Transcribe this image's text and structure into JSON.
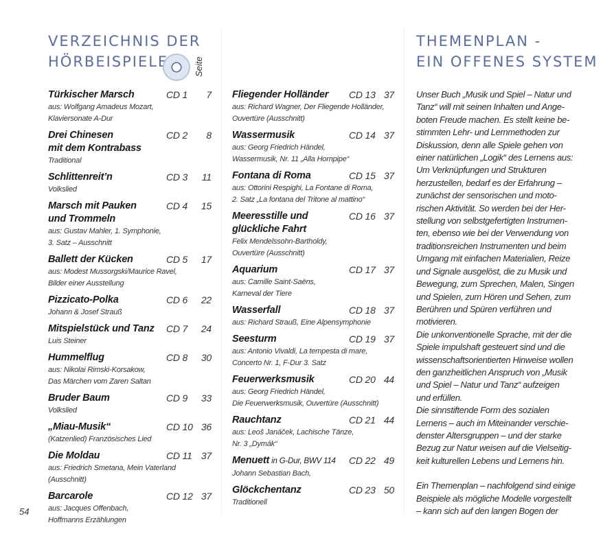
{
  "left_heading": [
    "VERZEICHNIS DER",
    "HÖRBEISPIELE"
  ],
  "seite_label": "Seite",
  "right_heading": [
    "THEMENPLAN -",
    "EIN OFFENES SYSTEM"
  ],
  "accent_color": "#5b6d9c",
  "icons": {
    "cd": "cd-disc-icon"
  },
  "left_entries": [
    {
      "title": [
        "Türkischer Marsch"
      ],
      "cd": "CD 1",
      "page": "7",
      "sub": [
        "aus: Wolfgang Amadeus Mozart,",
        "Klaviersonate A-Dur"
      ]
    },
    {
      "title": [
        "Drei Chinesen",
        "mit dem Kontrabass"
      ],
      "cd": "CD 2",
      "page": "8",
      "sub": [
        "Traditional"
      ]
    },
    {
      "title": [
        "Schlittenreit’n"
      ],
      "cd": "CD 3",
      "page": "11",
      "sub": [
        "Volkslied"
      ]
    },
    {
      "title": [
        "Marsch mit Pauken",
        "und Trommeln"
      ],
      "cd": "CD 4",
      "page": "15",
      "sub": [
        "aus: Gustav Mahler, 1. Symphonie,",
        "3. Satz – Ausschnitt"
      ]
    },
    {
      "title": [
        "Ballett der Kücken"
      ],
      "cd": "CD 5",
      "page": "17",
      "sub": [
        "aus: Modest Mussorgski/Maurice Ravel,",
        "Bilder einer Ausstellung"
      ]
    },
    {
      "title": [
        "Pizzicato-Polka"
      ],
      "cd": "CD 6",
      "page": "22",
      "sub": [
        "Johann & Josef Strauß"
      ]
    },
    {
      "title": [
        "Mitspielstück und Tanz"
      ],
      "cd": "CD 7",
      "page": "24",
      "sub": [
        "Luis Steiner"
      ]
    },
    {
      "title": [
        "Hummelflug"
      ],
      "cd": "CD 8",
      "page": "30",
      "sub": [
        "aus: Nikolai Rimski-Korsakow,",
        "Das Märchen vom Zaren Saltan"
      ]
    },
    {
      "title": [
        "Bruder Baum"
      ],
      "cd": "CD 9",
      "page": "33",
      "sub": [
        "Volkslied"
      ]
    },
    {
      "title": [
        "„Miau-Musik“"
      ],
      "cd": "CD 10",
      "page": "36",
      "sub": [
        "(Katzenlied) Französisches Lied"
      ]
    },
    {
      "title": [
        "Die Moldau"
      ],
      "cd": "CD 11",
      "page": "37",
      "sub": [
        "aus: Friedrich Smetana, Mein Vaterland",
        "(Ausschnitt)"
      ]
    },
    {
      "title": [
        "Barcarole"
      ],
      "cd": "CD 12",
      "page": "37",
      "sub": [
        "aus: Jacques Offenbach,",
        "Hoffmanns Erzählungen"
      ]
    }
  ],
  "mid_entries": [
    {
      "title": [
        "Fliegender Holländer"
      ],
      "cd": "CD 13",
      "page": "37",
      "sub": [
        "aus: Richard Wagner, Der Fliegende Holländer,",
        "Ouvertüre (Ausschnitt)"
      ]
    },
    {
      "title": [
        "Wassermusik"
      ],
      "cd": "CD 14",
      "page": "37",
      "sub": [
        "aus: Georg Friedrich Händel,",
        "Wassermusik, Nr. 11 „Alla Hornpipe“"
      ]
    },
    {
      "title": [
        "Fontana di Roma"
      ],
      "cd": "CD 15",
      "page": "37",
      "sub": [
        "aus: Ottorini Respighi, La Fontane di Roma,",
        "2. Satz „La fontana del Tritone al mattino“"
      ]
    },
    {
      "title": [
        "Meeresstille und",
        "glückliche Fahrt"
      ],
      "cd": "CD 16",
      "page": "37",
      "sub": [
        "Felix Mendelssohn-Bartholdy,",
        "Ouvertüre (Ausschnitt)"
      ]
    },
    {
      "title": [
        "Aquarium"
      ],
      "cd": "CD 17",
      "page": "37",
      "sub": [
        "aus: Camille Saint-Saëns,",
        "Karneval der Tiere"
      ]
    },
    {
      "title": [
        "Wasserfall"
      ],
      "cd": "CD 18",
      "page": "37",
      "sub": [
        "aus: Richard Strauß, Eine Alpensymphonie"
      ]
    },
    {
      "title": [
        "Seesturm"
      ],
      "cd": "CD 19",
      "page": "37",
      "sub": [
        "aus: Antonio Vivaldi, La tempesta di mare,",
        "Concerto Nr. 1, F-Dur 3. Satz"
      ]
    },
    {
      "title": [
        "Feuerwerksmusik"
      ],
      "cd": "CD 20",
      "page": "44",
      "sub": [
        "aus: Georg Friedrich Händel,",
        "Die Feuerwerksmusik, Ouvertüre (Ausschnitt)"
      ]
    },
    {
      "title": [
        "Rauchtanz"
      ],
      "cd": "CD 21",
      "page": "44",
      "sub": [
        "aus: Leoš Janáček, Lachische Tänze,",
        "Nr. 3 „Dymák“"
      ]
    },
    {
      "title": [
        "Menuett"
      ],
      "title_extra": " in G-Dur, BWV 114",
      "cd": "CD 22",
      "page": "49",
      "sub": [
        "Johann Sebastian Bach,"
      ]
    },
    {
      "title": [
        "Glöckchentanz"
      ],
      "cd": "CD 23",
      "page": "50",
      "sub": [
        "Traditionell"
      ]
    }
  ],
  "right_paragraphs": [
    [
      "Unser Buch „Musik und Spiel – Natur und",
      "Tanz“ will mit seinen Inhalten und Ange-",
      "boten Freude machen. Es stellt keine be-",
      "stimmten Lehr- und Lernmethoden zur",
      "Diskussion, denn alle Spiele gehen von",
      "einer natürlichen „Logik“ des Lernens aus:",
      "Um Verknüpfungen und Strukturen",
      "herzustellen, bedarf es der Erfahrung –",
      "zunächst der sensorischen und moto-",
      "rischen Aktivität. So werden bei der Her-",
      "stellung von selbstgefertigten Instrumen-",
      "ten, ebenso wie bei der Verwendung von",
      "traditionsreichen Instrumenten und beim",
      "Umgang mit einfachen Materialien, Reize",
      "und Signale ausgelöst, die zu Musik und",
      "Bewegung, zum Sprechen, Malen, Singen",
      "und Spielen, zum Hören und Sehen, zum",
      "Berühren und Spüren verführen und",
      "motivieren."
    ],
    [
      "Die unkonventionelle Sprache, mit der die",
      "Spiele impulshaft gesteuert sind und die",
      "wissenschaftsorientierten Hinweise wollen",
      "den ganzheitlichen Anspruch von „Musik",
      "und Spiel – Natur und Tanz“ aufzeigen",
      "und erfüllen."
    ],
    [
      "Die sinnstiftende Form des sozialen",
      "Lernens – auch im Miteinander verschie-",
      "denster Altersgruppen – und der starke",
      "Bezug zur Natur weisen auf die Vielseitig-",
      "keit kulturellen Lebens und Lernens hin."
    ],
    null,
    [
      "Ein Themenplan – nachfolgend sind einige",
      "Beispiele als mögliche Modelle vorgestellt",
      "– kann sich auf den langen Bogen der"
    ]
  ],
  "page_number": "54"
}
